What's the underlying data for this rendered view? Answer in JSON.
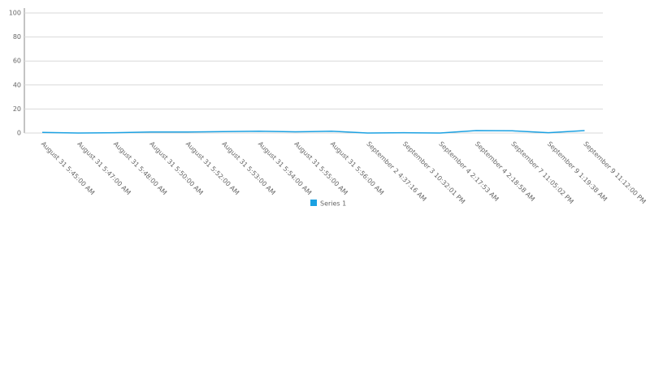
{
  "chart_data": {
    "type": "line",
    "categories": [
      "August 31 5:45:00 AM",
      "August 31 5:47:00 AM",
      "August 31 5:48:00 AM",
      "August 31 5:50:00 AM",
      "August 31 5:52:00 AM",
      "August 31 5:53:00 AM",
      "August 31 5:54:00 AM",
      "August 31 5:55:00 AM",
      "August 31 5:56:00 AM",
      "September 2 4:37:16 AM",
      "September 3 10:32:01 PM",
      "September 4 2:17:53 AM",
      "September 4 2:18:58 AM",
      "September 7 11:05:02 PM",
      "September 9 1:19:38 AM",
      "September 9 11:12:00 PM"
    ],
    "series": [
      {
        "name": "Series 1",
        "color": "#1ba1e2",
        "values": [
          0.5,
          0,
          0.3,
          0.8,
          0.8,
          1.2,
          1.5,
          1,
          1.5,
          0,
          0.3,
          0,
          2,
          1.8,
          0.3,
          2
        ]
      }
    ],
    "ylim": [
      0,
      100
    ],
    "yticks": [
      0,
      20,
      40,
      60,
      80,
      100
    ],
    "grid": true
  }
}
